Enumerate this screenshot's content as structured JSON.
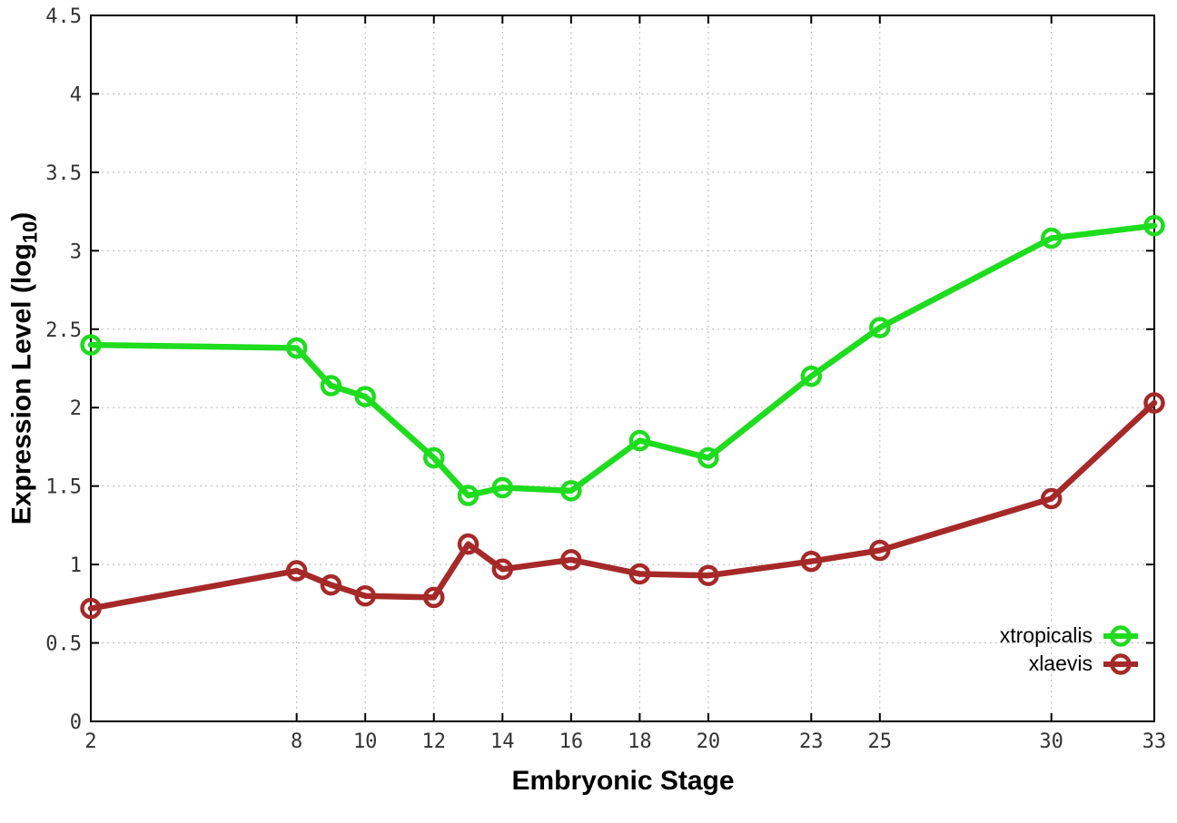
{
  "chart_data": {
    "type": "line",
    "title": "",
    "xlabel": "Embryonic Stage",
    "ylabel": "Expression Level (log10)",
    "ylabel_parts": {
      "prefix": "Expression Level (log",
      "sub": "10",
      "suffix": ")"
    },
    "xlim": [
      2,
      33
    ],
    "ylim": [
      0,
      4.5
    ],
    "x_ticks": [
      2,
      8,
      10,
      12,
      14,
      16,
      18,
      20,
      23,
      25,
      30,
      33
    ],
    "y_ticks": [
      0,
      0.5,
      1,
      1.5,
      2,
      2.5,
      3,
      3.5,
      4,
      4.5
    ],
    "grid": true,
    "legend_position": "bottom-right-inside",
    "x": [
      2,
      8,
      9,
      10,
      12,
      13,
      14,
      16,
      18,
      20,
      23,
      25,
      30,
      33
    ],
    "series": [
      {
        "name": "xtropicalis",
        "color": "#1edc1e",
        "values": [
          2.4,
          2.38,
          2.14,
          2.07,
          1.68,
          1.44,
          1.49,
          1.47,
          1.79,
          1.68,
          2.2,
          2.51,
          3.08,
          3.16
        ]
      },
      {
        "name": "xlaevis",
        "color": "#a62929",
        "values": [
          0.72,
          0.96,
          0.87,
          0.8,
          0.79,
          1.13,
          0.97,
          1.03,
          0.94,
          0.93,
          1.02,
          1.09,
          1.42,
          2.03
        ]
      }
    ],
    "style": {
      "background": "#ffffff",
      "axis_color": "#000000",
      "grid_color": "#b8b8b8",
      "tick_label_color": "#333333"
    }
  }
}
